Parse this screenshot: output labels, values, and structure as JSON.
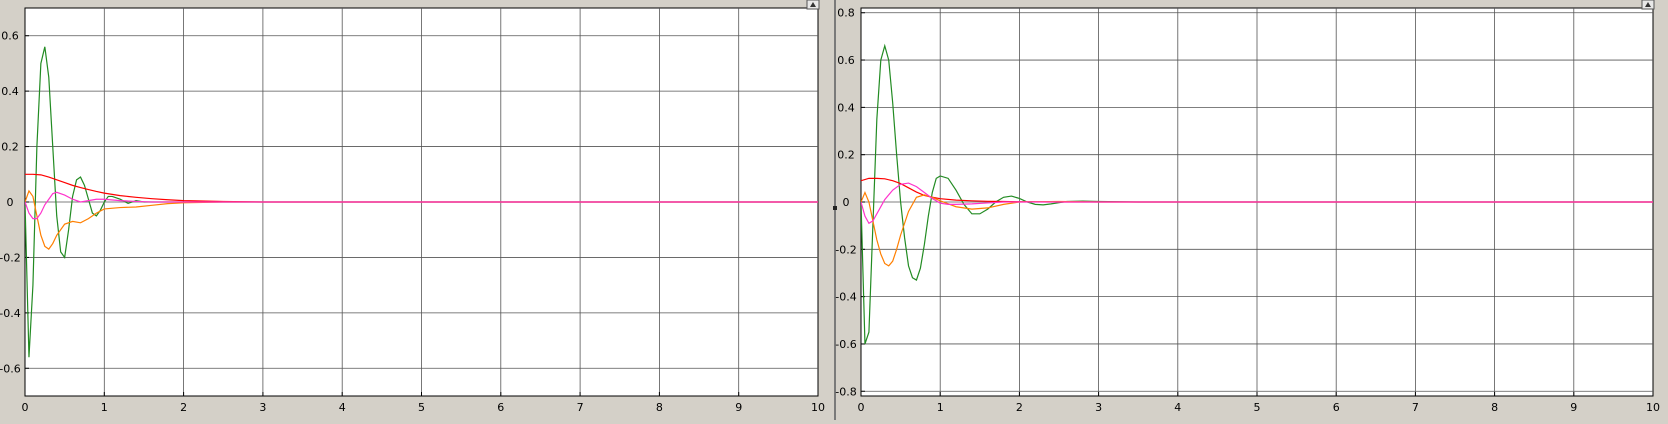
{
  "chart_data": [
    {
      "type": "line",
      "title": "",
      "xlabel": "",
      "ylabel": "",
      "xlim": [
        0,
        10
      ],
      "ylim": [
        -0.7,
        0.7
      ],
      "x_ticks": [
        0,
        1,
        2,
        3,
        4,
        5,
        6,
        7,
        8,
        9,
        10
      ],
      "y_ticks": [
        -0.6,
        -0.4,
        -0.2,
        0,
        0.2,
        0.4,
        0.6
      ],
      "y_tick_labels": [
        "-0.6",
        "-0.4",
        "-0.2",
        "0",
        "0.2",
        "0.4",
        "0.6"
      ],
      "grid": true,
      "legend": "none",
      "series": [
        {
          "color": "#228B22",
          "x": [
            0,
            0.05,
            0.1,
            0.15,
            0.2,
            0.25,
            0.3,
            0.35,
            0.4,
            0.45,
            0.5,
            0.55,
            0.6,
            0.65,
            0.7,
            0.75,
            0.8,
            0.85,
            0.9,
            0.95,
            1.0,
            1.05,
            1.1,
            1.2,
            1.3,
            1.4,
            1.5,
            1.6,
            1.8,
            2.0,
            2.5,
            3.0,
            10
          ],
          "y": [
            0,
            -0.56,
            -0.3,
            0.2,
            0.5,
            0.56,
            0.45,
            0.2,
            -0.05,
            -0.18,
            -0.2,
            -0.1,
            0.02,
            0.08,
            0.09,
            0.06,
            0.01,
            -0.04,
            -0.05,
            -0.03,
            0.0,
            0.02,
            0.02,
            0.01,
            -0.005,
            0.005,
            0.0,
            0.0,
            0.0,
            0.0,
            0.0,
            0.0,
            0.0
          ]
        },
        {
          "color": "#FF0000",
          "x": [
            0,
            0.1,
            0.2,
            0.3,
            0.4,
            0.5,
            0.6,
            0.7,
            0.8,
            0.9,
            1.0,
            1.2,
            1.4,
            1.6,
            1.8,
            2.0,
            2.5,
            3.0,
            10
          ],
          "y": [
            0.1,
            0.1,
            0.098,
            0.09,
            0.08,
            0.07,
            0.06,
            0.052,
            0.045,
            0.038,
            0.032,
            0.023,
            0.017,
            0.012,
            0.008,
            0.005,
            0.002,
            0.0,
            0.0
          ]
        },
        {
          "color": "#FF7F00",
          "x": [
            0,
            0.05,
            0.1,
            0.15,
            0.2,
            0.25,
            0.3,
            0.35,
            0.4,
            0.5,
            0.6,
            0.7,
            0.8,
            0.9,
            1.0,
            1.2,
            1.4,
            1.6,
            1.8,
            2.0,
            2.5,
            3.0,
            10
          ],
          "y": [
            0.0,
            0.04,
            0.02,
            -0.05,
            -0.12,
            -0.16,
            -0.17,
            -0.15,
            -0.12,
            -0.08,
            -0.07,
            -0.075,
            -0.06,
            -0.04,
            -0.025,
            -0.02,
            -0.018,
            -0.012,
            -0.006,
            -0.003,
            0.0,
            0.0,
            0.0
          ]
        },
        {
          "color": "#FF33CC",
          "x": [
            0,
            0.05,
            0.1,
            0.15,
            0.2,
            0.25,
            0.3,
            0.35,
            0.4,
            0.5,
            0.6,
            0.7,
            0.8,
            0.9,
            1.0,
            1.2,
            1.4,
            1.6,
            1.8,
            2.0,
            2.5,
            10
          ],
          "y": [
            0.0,
            -0.04,
            -0.06,
            -0.06,
            -0.04,
            -0.01,
            0.01,
            0.03,
            0.035,
            0.025,
            0.01,
            0.0,
            0.005,
            0.01,
            0.01,
            0.005,
            0.002,
            0.0,
            0.0,
            0.0,
            0.0,
            0.0
          ]
        }
      ]
    },
    {
      "type": "line",
      "title": "",
      "xlabel": "",
      "ylabel": "",
      "xlim": [
        0,
        10
      ],
      "ylim": [
        -0.82,
        0.82
      ],
      "x_ticks": [
        0,
        1,
        2,
        3,
        4,
        5,
        6,
        7,
        8,
        9,
        10
      ],
      "y_ticks": [
        -0.8,
        -0.6,
        -0.4,
        -0.2,
        0,
        0.2,
        0.4,
        0.6,
        0.8
      ],
      "y_tick_labels": [
        "-0.8",
        "-0.6",
        "-0.4",
        "-0.2",
        "0",
        "0.2",
        "0.4",
        "0.6",
        "0.8"
      ],
      "grid": true,
      "legend": "none",
      "series": [
        {
          "color": "#228B22",
          "x": [
            0,
            0.05,
            0.1,
            0.15,
            0.2,
            0.25,
            0.3,
            0.35,
            0.4,
            0.45,
            0.5,
            0.55,
            0.6,
            0.65,
            0.7,
            0.75,
            0.8,
            0.85,
            0.9,
            0.95,
            1.0,
            1.1,
            1.2,
            1.3,
            1.4,
            1.5,
            1.6,
            1.7,
            1.8,
            1.9,
            2.0,
            2.1,
            2.2,
            2.3,
            2.4,
            2.5,
            2.6,
            2.8,
            3.0,
            3.5,
            4.0,
            10
          ],
          "y": [
            0,
            -0.6,
            -0.55,
            -0.1,
            0.35,
            0.6,
            0.66,
            0.6,
            0.42,
            0.2,
            0.0,
            -0.15,
            -0.27,
            -0.32,
            -0.33,
            -0.28,
            -0.18,
            -0.06,
            0.04,
            0.1,
            0.11,
            0.1,
            0.05,
            -0.01,
            -0.05,
            -0.05,
            -0.03,
            0.0,
            0.02,
            0.025,
            0.015,
            0.0,
            -0.01,
            -0.012,
            -0.008,
            -0.003,
            0.002,
            0.004,
            0.002,
            0.0,
            0.0,
            0.0
          ]
        },
        {
          "color": "#FF0000",
          "x": [
            0,
            0.1,
            0.2,
            0.3,
            0.4,
            0.5,
            0.6,
            0.7,
            0.8,
            0.9,
            1.0,
            1.2,
            1.4,
            1.6,
            1.8,
            2.0,
            2.5,
            3.0,
            10
          ],
          "y": [
            0.09,
            0.1,
            0.1,
            0.098,
            0.09,
            0.078,
            0.06,
            0.042,
            0.028,
            0.02,
            0.014,
            0.008,
            0.005,
            0.003,
            0.002,
            0.001,
            0.0,
            0.0,
            0.0
          ]
        },
        {
          "color": "#FF7F00",
          "x": [
            0,
            0.05,
            0.1,
            0.15,
            0.2,
            0.25,
            0.3,
            0.35,
            0.4,
            0.45,
            0.5,
            0.6,
            0.7,
            0.8,
            0.9,
            1.0,
            1.2,
            1.4,
            1.6,
            1.8,
            2.0,
            2.5,
            3.0,
            10
          ],
          "y": [
            0.0,
            0.04,
            0.0,
            -0.08,
            -0.16,
            -0.22,
            -0.26,
            -0.27,
            -0.25,
            -0.2,
            -0.14,
            -0.04,
            0.02,
            0.03,
            0.02,
            0.005,
            -0.02,
            -0.03,
            -0.025,
            -0.01,
            0.0,
            0.002,
            0.0,
            0.0
          ]
        },
        {
          "color": "#FF33CC",
          "x": [
            0,
            0.05,
            0.1,
            0.15,
            0.2,
            0.3,
            0.4,
            0.5,
            0.6,
            0.7,
            0.8,
            0.9,
            1.0,
            1.1,
            1.2,
            1.4,
            1.6,
            1.8,
            2.0,
            2.5,
            10
          ],
          "y": [
            0.0,
            -0.06,
            -0.09,
            -0.08,
            -0.05,
            0.01,
            0.05,
            0.075,
            0.08,
            0.065,
            0.04,
            0.015,
            -0.005,
            -0.01,
            -0.01,
            -0.008,
            -0.004,
            0.0,
            0.0,
            0.0,
            0.0
          ]
        }
      ]
    }
  ]
}
